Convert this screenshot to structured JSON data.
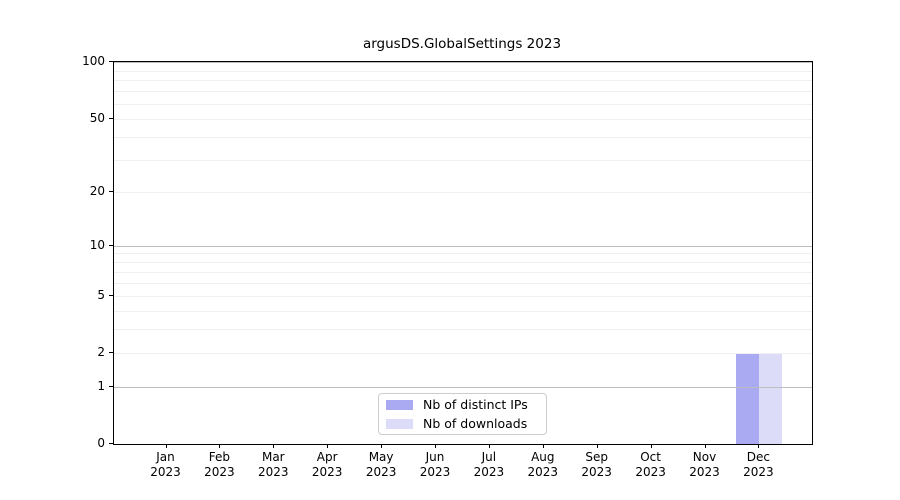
{
  "chart_data": {
    "type": "bar",
    "title": "argusDS.GlobalSettings 2023",
    "year_label": "2023",
    "categories": [
      "Jan",
      "Feb",
      "Mar",
      "Apr",
      "May",
      "Jun",
      "Jul",
      "Aug",
      "Sep",
      "Oct",
      "Nov",
      "Dec"
    ],
    "series": [
      {
        "name": "Nb of distinct IPs",
        "color": "#aaaaf2",
        "values": [
          0,
          0,
          0,
          0,
          0,
          0,
          0,
          0,
          0,
          0,
          0,
          2
        ]
      },
      {
        "name": "Nb of downloads",
        "color": "#dcdcf8",
        "values": [
          0,
          0,
          0,
          0,
          0,
          0,
          0,
          0,
          0,
          0,
          0,
          2
        ]
      }
    ],
    "yscale": "log1p",
    "ylim": [
      0,
      100
    ],
    "y_tick_labels": [
      0,
      1,
      2,
      5,
      10,
      20,
      50,
      100
    ],
    "y_grid_major": [
      1,
      10,
      100
    ],
    "y_grid_minor": [
      2,
      3,
      4,
      5,
      6,
      7,
      8,
      9,
      20,
      30,
      40,
      50,
      60,
      70,
      80,
      90
    ],
    "legend_position": "lower center inside",
    "grid": true,
    "colors": {
      "grid_major": "#bdbdbd",
      "grid_minor": "#efefef",
      "axis": "#000000",
      "legend_border": "#cccccc",
      "background": "#ffffff"
    }
  }
}
